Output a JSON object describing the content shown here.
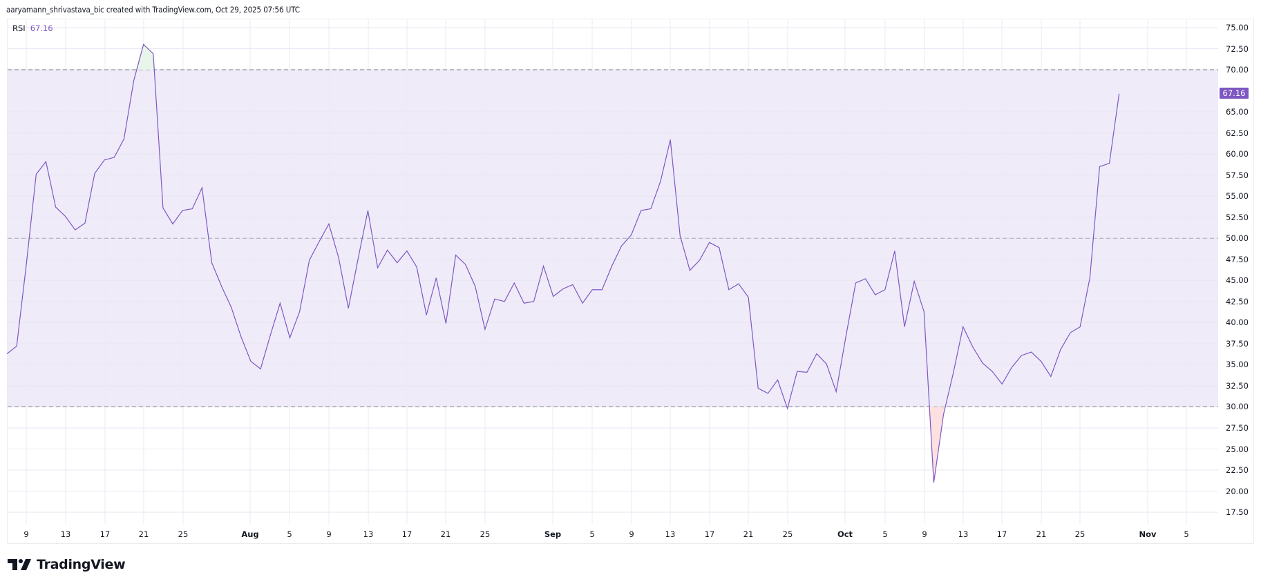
{
  "header": {
    "attribution": "aaryamann_shrivastava_bic created with TradingView.com, Oct 29, 2025 07:56 UTC"
  },
  "legend": {
    "indicator": "RSI",
    "value": "67.16"
  },
  "price_axis": {
    "labels": [
      "75.00",
      "72.50",
      "70.00",
      "65.00",
      "62.50",
      "60.00",
      "57.50",
      "55.00",
      "52.50",
      "50.00",
      "47.50",
      "45.00",
      "42.50",
      "40.00",
      "37.50",
      "35.00",
      "32.50",
      "30.00",
      "27.50",
      "25.00",
      "22.50",
      "20.00",
      "17.50"
    ],
    "last_value_badge": "67.16"
  },
  "time_axis": {
    "labels": [
      "9",
      "13",
      "17",
      "21",
      "25",
      "Aug",
      "5",
      "9",
      "13",
      "17",
      "21",
      "25",
      "Sep",
      "5",
      "9",
      "13",
      "17",
      "21",
      "25",
      "Oct",
      "5",
      "9",
      "13",
      "17",
      "21",
      "25",
      "Nov",
      "5"
    ]
  },
  "branding": {
    "logo_text": "TradingView"
  },
  "colors": {
    "rsi_line": "#7e57c2",
    "band_fill": "#efebf9",
    "overbought_fill": "#e8f5e9",
    "oversold_fill": "#fde0e0",
    "band_lines": "#787b86",
    "grid": "#f0f0f3"
  },
  "chart_data": {
    "type": "line",
    "title": "RSI",
    "current_value": 67.16,
    "xlabel": "",
    "ylabel": "",
    "ylim": [
      16.5,
      76
    ],
    "grid": true,
    "legend_position": "top-left",
    "bands": {
      "upper": 70,
      "middle": 50,
      "lower": 30
    },
    "x_ticks": [
      "Jul 9",
      "Jul 13",
      "Jul 17",
      "Jul 21",
      "Jul 25",
      "Aug",
      "Aug 5",
      "Aug 9",
      "Aug 13",
      "Aug 17",
      "Aug 21",
      "Aug 25",
      "Sep",
      "Sep 5",
      "Sep 9",
      "Sep 13",
      "Sep 17",
      "Sep 21",
      "Sep 25",
      "Oct",
      "Oct 5",
      "Oct 9",
      "Oct 13",
      "Oct 17",
      "Oct 21",
      "Oct 25",
      "Nov",
      "Nov 5"
    ],
    "y_ticks": [
      17.5,
      20,
      22.5,
      25,
      27.5,
      30,
      32.5,
      35,
      37.5,
      40,
      42.5,
      45,
      47.5,
      50,
      52.5,
      55,
      57.5,
      60,
      62.5,
      65,
      70,
      72.5,
      75
    ],
    "series": [
      {
        "name": "RSI",
        "start_date": "Jul 7, 2025",
        "interval": "1D",
        "values": [
          36.3,
          37.2,
          47.0,
          57.6,
          59.1,
          53.7,
          52.6,
          51.0,
          51.8,
          57.7,
          59.3,
          59.6,
          61.8,
          68.7,
          73.0,
          71.9,
          53.6,
          51.7,
          53.3,
          53.5,
          56.0,
          47.1,
          44.3,
          41.8,
          38.3,
          35.4,
          34.5,
          38.5,
          42.3,
          38.2,
          41.3,
          47.4,
          49.6,
          51.7,
          47.7,
          41.7,
          47.6,
          53.3,
          46.5,
          48.6,
          47.1,
          48.5,
          46.6,
          40.9,
          45.3,
          39.9,
          48.0,
          46.9,
          44.3,
          39.2,
          42.8,
          42.5,
          44.7,
          42.3,
          42.5,
          46.7,
          43.1,
          44.0,
          44.5,
          42.3,
          43.9,
          43.9,
          46.7,
          49.1,
          50.4,
          53.3,
          53.5,
          56.8,
          61.7,
          50.3,
          46.2,
          47.4,
          49.5,
          48.9,
          43.9,
          44.6,
          43.0,
          32.2,
          31.6,
          33.2,
          29.8,
          34.2,
          34.1,
          36.3,
          35.1,
          31.8,
          38.4,
          44.7,
          45.2,
          43.3,
          43.9,
          48.5,
          39.5,
          44.9,
          41.3,
          21.0,
          29.1,
          34.0,
          39.5,
          37.1,
          35.2,
          34.2,
          32.7,
          34.7,
          36.1,
          36.5,
          35.4,
          33.6,
          36.8,
          38.8,
          39.5,
          45.3,
          58.5,
          58.9,
          67.16
        ]
      }
    ]
  }
}
